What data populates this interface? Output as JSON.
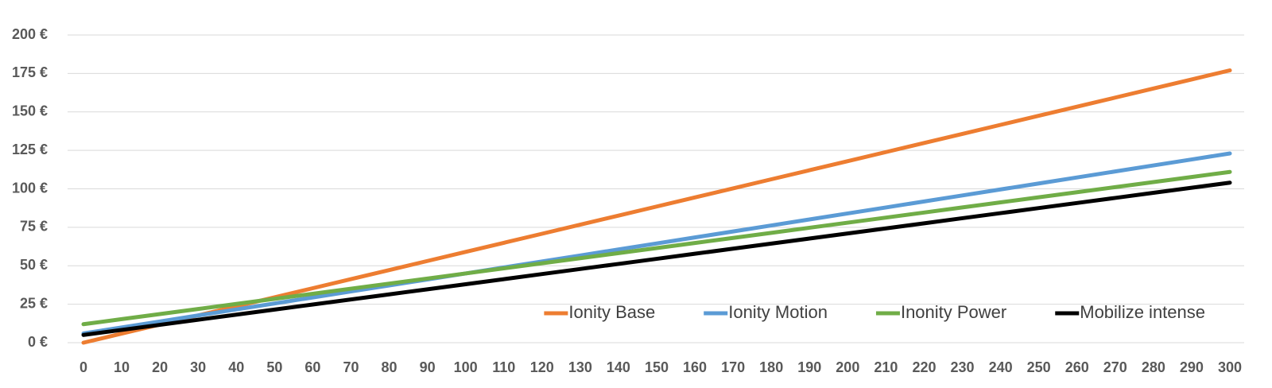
{
  "chart_data": {
    "type": "line",
    "x": [
      0,
      10,
      20,
      30,
      40,
      50,
      60,
      70,
      80,
      90,
      100,
      110,
      120,
      130,
      140,
      150,
      160,
      170,
      180,
      190,
      200,
      210,
      220,
      230,
      240,
      250,
      260,
      270,
      280,
      290,
      300
    ],
    "xlim": [
      0,
      300
    ],
    "ylim": [
      0,
      200
    ],
    "yticks": [
      {
        "value": 0,
        "label": "0 €"
      },
      {
        "value": 25,
        "label": "25 €"
      },
      {
        "value": 50,
        "label": "50 €"
      },
      {
        "value": 75,
        "label": "75 €"
      },
      {
        "value": 100,
        "label": "100 €"
      },
      {
        "value": 125,
        "label": "125 €"
      },
      {
        "value": 150,
        "label": "150 €"
      },
      {
        "value": 175,
        "label": "175 €"
      },
      {
        "value": 200,
        "label": "200 €"
      }
    ],
    "grid": true,
    "legend": "lower-right",
    "series": [
      {
        "name": "Ionity Base",
        "color": "#ed7d31",
        "values": [
          0,
          5.9,
          11.8,
          17.7,
          23.6,
          29.5,
          35.4,
          41.3,
          47.2,
          53.1,
          59,
          64.9,
          70.8,
          76.7,
          82.6,
          88.5,
          94.4,
          100.3,
          106.2,
          112.1,
          118,
          123.9,
          129.8,
          135.7,
          141.6,
          147.5,
          153.4,
          159.3,
          165.2,
          171.1,
          177
        ]
      },
      {
        "name": "Ionity Motion",
        "color": "#5b9bd5",
        "values": [
          6,
          9.9,
          13.8,
          17.7,
          21.6,
          25.5,
          29.4,
          33.3,
          37.2,
          41.1,
          45,
          48.9,
          52.8,
          56.7,
          60.6,
          64.5,
          68.4,
          72.3,
          76.2,
          80.1,
          84,
          87.9,
          91.8,
          95.7,
          99.6,
          103.5,
          107.4,
          111.3,
          115.2,
          119.1,
          123
        ]
      },
      {
        "name": "Inonity Power",
        "color": "#70ad47",
        "values": [
          12,
          15.3,
          18.6,
          21.9,
          25.2,
          28.5,
          31.8,
          35.1,
          38.4,
          41.7,
          45,
          48.3,
          51.6,
          54.9,
          58.2,
          61.5,
          64.8,
          68.1,
          71.4,
          74.7,
          78,
          81.3,
          84.6,
          87.9,
          91.2,
          94.5,
          97.8,
          101.1,
          104.4,
          107.7,
          111
        ]
      },
      {
        "name": "Mobilize intense",
        "color": "#000000",
        "values": [
          5,
          8.3,
          11.6,
          14.9,
          18.2,
          21.5,
          24.8,
          28.1,
          31.4,
          34.7,
          38,
          41.3,
          44.6,
          47.9,
          51.2,
          54.5,
          57.8,
          61.1,
          64.4,
          67.7,
          71,
          74.3,
          77.6,
          80.9,
          84.2,
          87.5,
          90.8,
          94.1,
          97.4,
          100.7,
          104
        ]
      }
    ]
  }
}
